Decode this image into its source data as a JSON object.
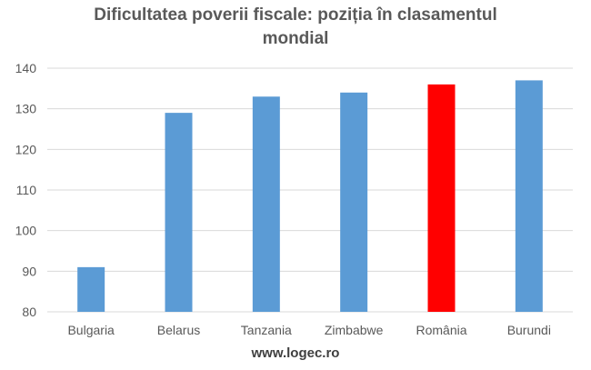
{
  "chart_data": {
    "type": "bar",
    "title_lines": [
      "Dificultatea poverii fiscale: poziția în clasamentul",
      "mondial"
    ],
    "categories": [
      "Bulgaria",
      "Belarus",
      "Tanzania",
      "Zimbabwe",
      "România",
      "Burundi"
    ],
    "values": [
      91,
      129,
      133,
      134,
      136,
      137
    ],
    "bar_colors": [
      "#5b9bd5",
      "#5b9bd5",
      "#5b9bd5",
      "#5b9bd5",
      "#ff0000",
      "#5b9bd5"
    ],
    "ylim": [
      80,
      140
    ],
    "yticks": [
      "80",
      "90",
      "100",
      "110",
      "120",
      "130",
      "140"
    ],
    "grid": true,
    "legend": "none"
  },
  "source": "www.logec.ro",
  "colors": {
    "bar": "#5b9bd5",
    "highlight": "#ff0000",
    "grid": "#d9d9d9",
    "text": "#595959"
  }
}
